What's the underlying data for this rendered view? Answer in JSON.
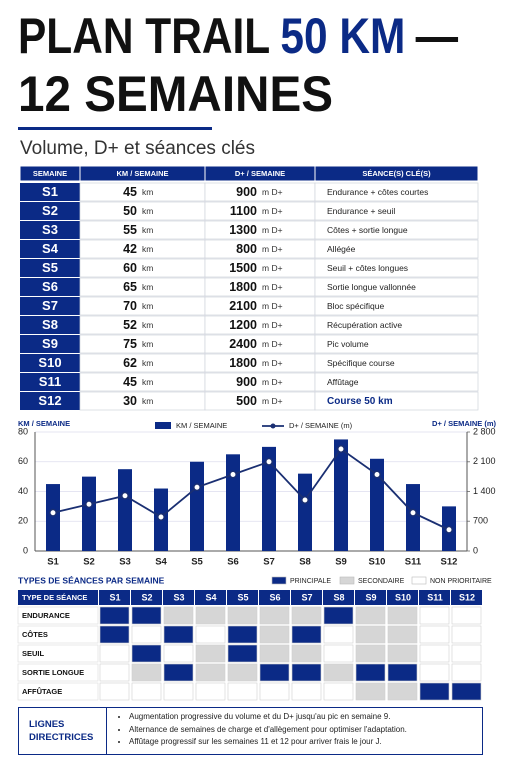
{
  "header": {
    "title_start": "PLAN TRAIL",
    "title_accent": "50 KM",
    "title_end": "—",
    "title_line2": "12 SEMAINES",
    "subtitle": "Volume, D+ et séances clés"
  },
  "table": {
    "columns": [
      "SEMAINE",
      "KM / SEMAINE",
      "D+ / SEMAINE",
      "SÉANCE(S) CLÉ(S)"
    ],
    "rows": [
      [
        "S1",
        45,
        "km",
        900,
        "m D+",
        "Endurance + côtes courtes"
      ],
      [
        "S2",
        50,
        "km",
        1100,
        "m D+",
        "Endurance + seuil"
      ],
      [
        "S3",
        55,
        "km",
        1300,
        "m D+",
        "Côtes + sortie longue"
      ],
      [
        "S4",
        42,
        "km",
        800,
        "m D+",
        "Allégée"
      ],
      [
        "S5",
        60,
        "km",
        1500,
        "m D+",
        "Seuil + côtes longues"
      ],
      [
        "S6",
        65,
        "km",
        1800,
        "m D+",
        "Sortie longue vallonnée"
      ],
      [
        "S7",
        70,
        "km",
        2100,
        "m D+",
        "Bloc spécifique"
      ],
      [
        "S8",
        52,
        "km",
        1200,
        "m D+",
        "Récupération active"
      ],
      [
        "S9",
        75,
        "km",
        2400,
        "m D+",
        "Pic volume"
      ],
      [
        "S10",
        62,
        "km",
        1800,
        "m D+",
        "Spécifique course"
      ],
      [
        "S11",
        45,
        "km",
        900,
        "m D+",
        "Affûtage"
      ],
      [
        "S12",
        30,
        "km",
        500,
        "m D+",
        "Course 50 km"
      ]
    ]
  },
  "chart_data": {
    "type": "combo",
    "categories": [
      "S1",
      "S2",
      "S3",
      "S4",
      "S5",
      "S6",
      "S7",
      "S8",
      "S9",
      "S10",
      "S11",
      "S12"
    ],
    "ylabel": "KM / SEMAINE",
    "y2label": "D+ / SEMAINE (m)",
    "series": [
      {
        "name": "KM / SEMAINE",
        "color": "#0b2a86",
        "type": "bar",
        "values": [
          45,
          50,
          55,
          42,
          60,
          65,
          70,
          52,
          75,
          62,
          45,
          30
        ]
      },
      {
        "name": "D+ / SEMAINE (m)",
        "color": "#1a2f72",
        "type": "line",
        "axis": "y2",
        "values": [
          900,
          1100,
          1300,
          800,
          1500,
          1800,
          2100,
          1200,
          2400,
          1800,
          900,
          500
        ]
      }
    ],
    "ylim": [
      0,
      80
    ],
    "yticks": [
      0,
      20,
      40,
      60,
      80
    ],
    "y2lim": [
      0,
      2800
    ],
    "y2ticks": [
      0,
      700,
      {
        "value": 1400,
        "label": "1 400"
      },
      {
        "value": 2100,
        "label": "2 100"
      },
      {
        "value": 2800,
        "label": "2 800"
      }
    ],
    "grid": true
  },
  "session_types": {
    "title": "TYPES DE SÉANCES PAR SEMAINE",
    "legend": [
      {
        "label": "PRINCIPALE",
        "color": "#0b2a86"
      },
      {
        "label": "SECONDAIRE",
        "color": "#d6d6d6"
      },
      {
        "label": "NON PRIORITAIRE",
        "color": "#ffffff"
      }
    ],
    "header": "TYPE DE SÉANCE",
    "weeks": [
      "S1",
      "S2",
      "S3",
      "S4",
      "S5",
      "S6",
      "S7",
      "S8",
      "S9",
      "S10",
      "S11",
      "S12"
    ],
    "rows": [
      {
        "name": "ENDURANCE",
        "levels": [
          0,
          0,
          1,
          1,
          1,
          1,
          1,
          0,
          1,
          1,
          2,
          2
        ]
      },
      {
        "name": "CÔTES",
        "levels": [
          0,
          2,
          0,
          2,
          0,
          1,
          0,
          2,
          1,
          1,
          2,
          2
        ]
      },
      {
        "name": "SEUIL",
        "levels": [
          2,
          0,
          2,
          1,
          0,
          1,
          1,
          2,
          1,
          1,
          2,
          2
        ]
      },
      {
        "name": "SORTIE LONGUE",
        "levels": [
          2,
          1,
          0,
          1,
          1,
          0,
          0,
          1,
          0,
          0,
          2,
          2
        ]
      },
      {
        "name": "AFFÛTAGE",
        "levels": [
          2,
          2,
          2,
          2,
          2,
          2,
          2,
          2,
          1,
          1,
          0,
          0
        ]
      }
    ]
  },
  "guidelines": {
    "title": "LIGNES DIRECTRICES",
    "items": [
      "Augmentation progressive du volume et du D+ jusqu'au pic en semaine 9.",
      "Alternance de semaines de charge et d'allègement pour optimiser l'adaptation.",
      "Affûtage progressif sur les semaines 11 et 12 pour arriver frais le jour J."
    ]
  }
}
